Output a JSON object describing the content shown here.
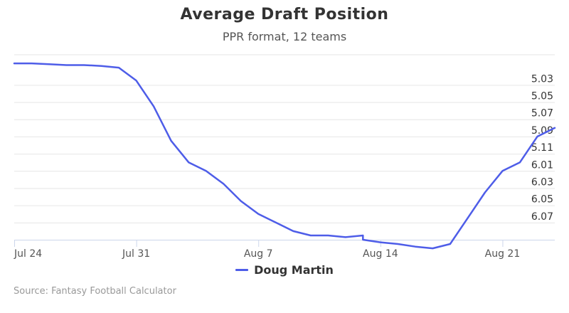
{
  "chart_data": {
    "type": "line",
    "title": "Average Draft Position",
    "subtitle": "PPR format, 12 teams",
    "x_ticks": [
      {
        "date": "2019-07-24",
        "label": "Jul 24"
      },
      {
        "date": "2019-07-31",
        "label": "Jul 31"
      },
      {
        "date": "2019-08-07",
        "label": "Aug 7"
      },
      {
        "date": "2019-08-14",
        "label": "Aug 14"
      },
      {
        "date": "2019-08-21",
        "label": "Aug 21"
      }
    ],
    "xlim": [
      "2019-07-24",
      "2019-08-24"
    ],
    "y_ticks": [
      "5.03",
      "5.05",
      "5.07",
      "5.09",
      "5.11",
      "6.01",
      "6.03",
      "6.05",
      "6.07"
    ],
    "y_reversed": true,
    "grid": true,
    "legend_position": "bottom-center",
    "colors": {
      "series": "#4e5de8",
      "grid": "#e6e6e6",
      "axis": "#ccd6eb"
    },
    "series": [
      {
        "name": "Doug Martin",
        "points": [
          {
            "x": "2019-07-24",
            "y": 5.005
          },
          {
            "x": "2019-07-25",
            "y": 5.005
          },
          {
            "x": "2019-07-26",
            "y": 5.006
          },
          {
            "x": "2019-07-27",
            "y": 5.007
          },
          {
            "x": "2019-07-28",
            "y": 5.007
          },
          {
            "x": "2019-07-29",
            "y": 5.008
          },
          {
            "x": "2019-07-30",
            "y": 5.01
          },
          {
            "x": "2019-07-31",
            "y": 5.025
          },
          {
            "x": "2019-08-01",
            "y": 5.055
          },
          {
            "x": "2019-08-02",
            "y": 5.095
          },
          {
            "x": "2019-08-03",
            "y": 5.12
          },
          {
            "x": "2019-08-04",
            "y": 6.01
          },
          {
            "x": "2019-08-05",
            "y": 6.025
          },
          {
            "x": "2019-08-06",
            "y": 6.045
          },
          {
            "x": "2019-08-07",
            "y": 6.06
          },
          {
            "x": "2019-08-08",
            "y": 6.07
          },
          {
            "x": "2019-08-09",
            "y": 6.08
          },
          {
            "x": "2019-08-10",
            "y": 6.085
          },
          {
            "x": "2019-08-11",
            "y": 6.085
          },
          {
            "x": "2019-08-12",
            "y": 6.087
          },
          {
            "x": "2019-08-13",
            "y": 6.085
          },
          {
            "x": "2019-08-13",
            "y": 6.09
          },
          {
            "x": "2019-08-14",
            "y": 6.093
          },
          {
            "x": "2019-08-15",
            "y": 6.095
          },
          {
            "x": "2019-08-16",
            "y": 6.098
          },
          {
            "x": "2019-08-17",
            "y": 6.1
          },
          {
            "x": "2019-08-18",
            "y": 6.095
          },
          {
            "x": "2019-08-19",
            "y": 6.065
          },
          {
            "x": "2019-08-20",
            "y": 6.035
          },
          {
            "x": "2019-08-21",
            "y": 6.01
          },
          {
            "x": "2019-08-22",
            "y": 5.12
          },
          {
            "x": "2019-08-23",
            "y": 5.09
          },
          {
            "x": "2019-08-24",
            "y": 5.08
          }
        ]
      }
    ]
  },
  "source": "Source: Fantasy Football Calculator"
}
